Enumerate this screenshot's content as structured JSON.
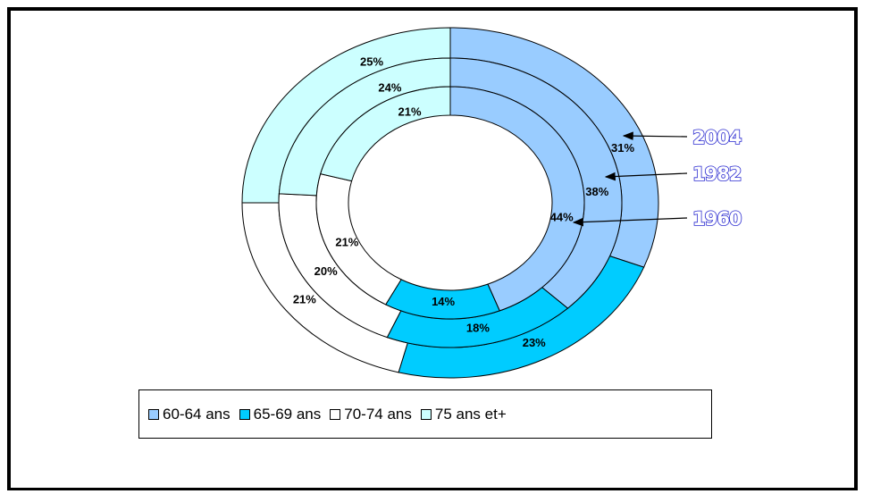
{
  "chart_data": {
    "type": "donut",
    "legend": [
      {
        "label": "60-64 ans",
        "color": "#99ccff"
      },
      {
        "label": "65-69 ans",
        "color": "#00ccff"
      },
      {
        "label": "70-74 ans",
        "color": "#ffffff"
      },
      {
        "label": "75 ans et+",
        "color": "#ccffff"
      }
    ],
    "rings": [
      {
        "year": "1960",
        "values": [
          44,
          14,
          21,
          21
        ],
        "labels": [
          "44%",
          "14%",
          "21%",
          "21%"
        ]
      },
      {
        "year": "1982",
        "values": [
          38,
          18,
          20,
          24
        ],
        "labels": [
          "38%",
          "18%",
          "20%",
          "24%"
        ]
      },
      {
        "year": "2004",
        "values": [
          31,
          23,
          21,
          25
        ],
        "labels": [
          "31%",
          "23%",
          "21%",
          "25%"
        ]
      }
    ],
    "legend_placement": "bottom"
  }
}
